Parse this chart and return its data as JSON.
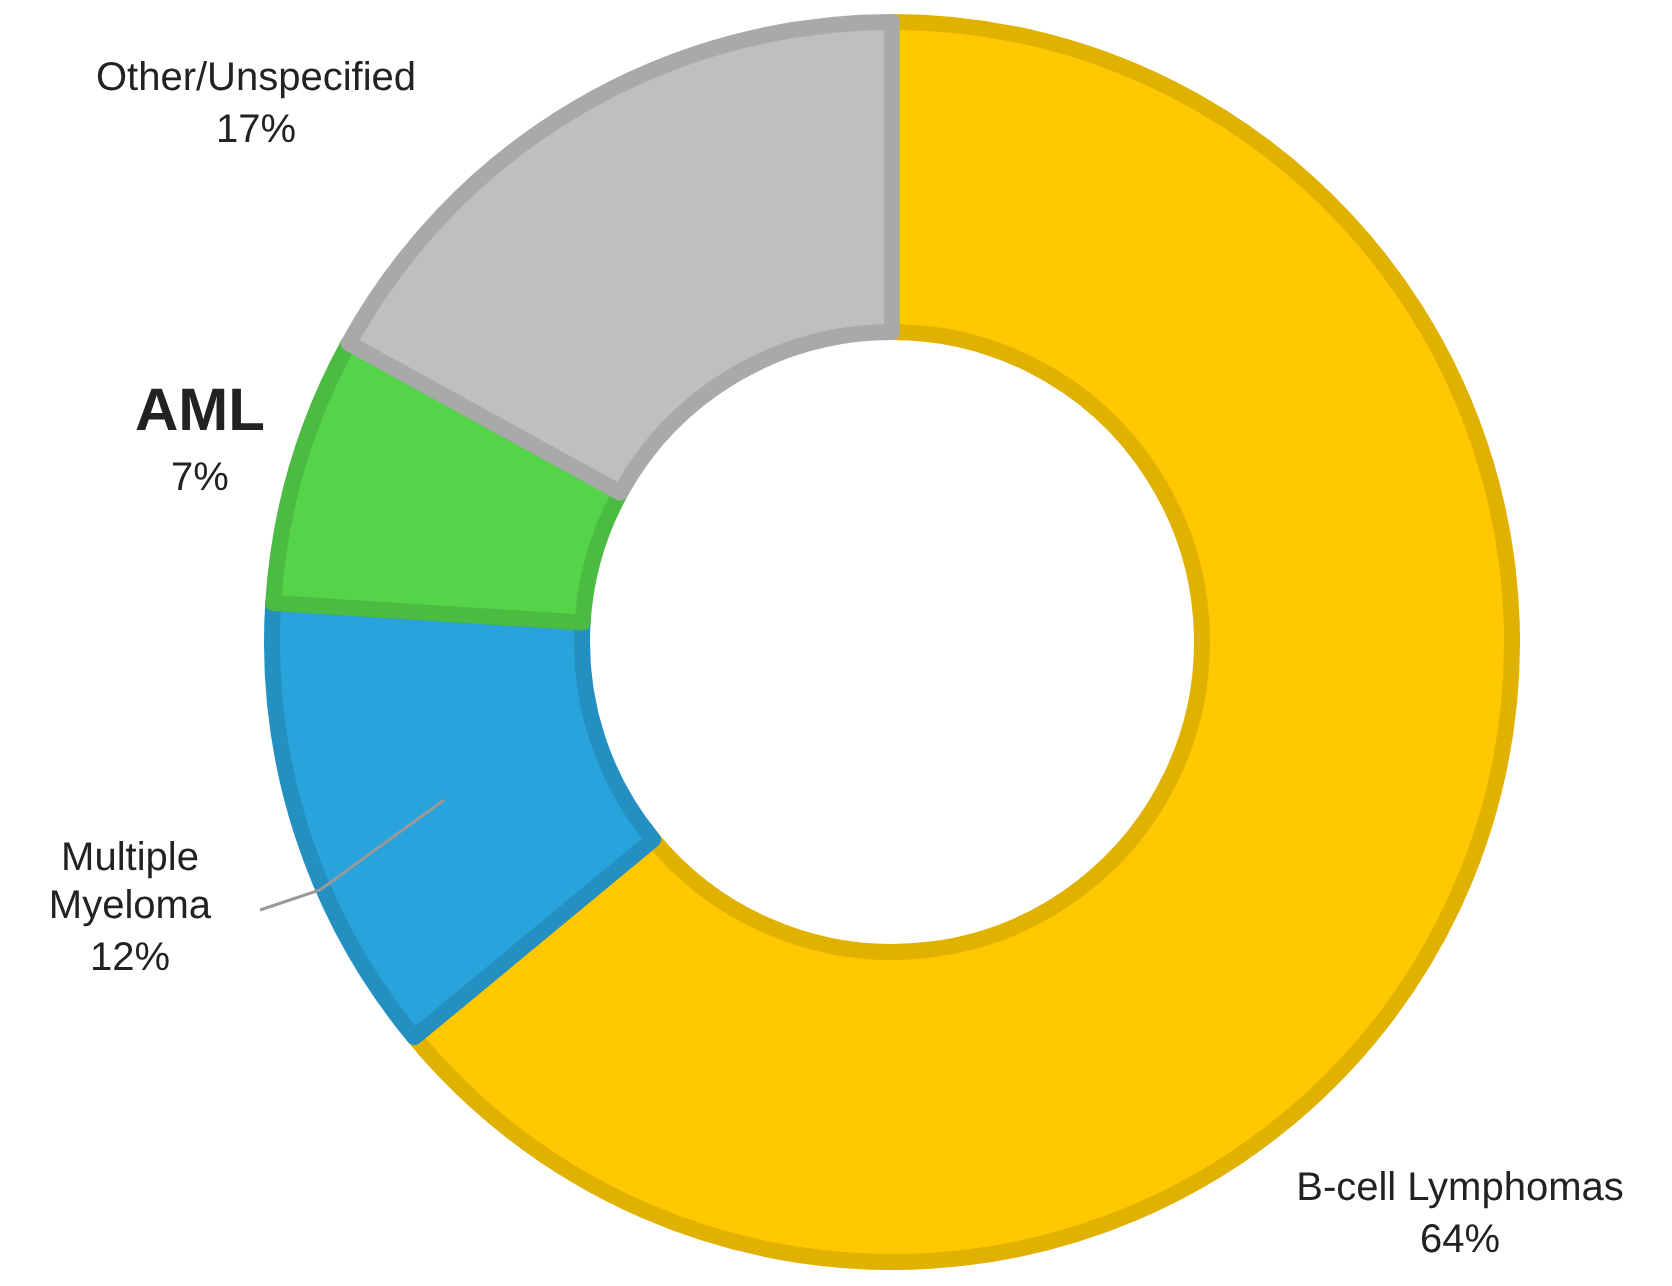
{
  "chart_data": {
    "type": "donut",
    "categories": [
      "B-cell Lymphomas",
      "Multiple Myeloma",
      "AML",
      "Other/Unspecified"
    ],
    "values": [
      64,
      12,
      7,
      17
    ],
    "colors": [
      "#ffc800",
      "#29a3dc",
      "#55d44a",
      "#bfbfbf"
    ],
    "value_labels": [
      "64%",
      "12%",
      "7%",
      "17%"
    ]
  }
}
